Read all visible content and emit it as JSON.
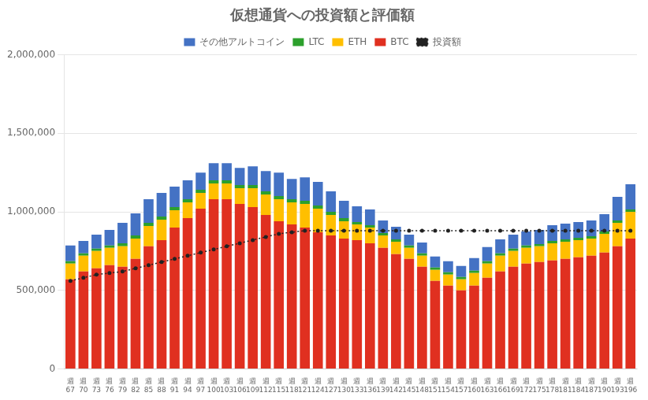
{
  "chart_data": {
    "type": "bar",
    "title": "仮想通貨への投資額と評価額",
    "categories": [
      "週\n67",
      "週\n70",
      "週\n73",
      "週\n76",
      "週\n79",
      "週\n82",
      "週\n85",
      "週\n88",
      "週\n91",
      "週\n94",
      "週\n97",
      "週\n100",
      "週\n103",
      "週\n106",
      "週\n109",
      "週\n112",
      "週\n115",
      "週\n118",
      "週\n121",
      "週\n124",
      "週\n127",
      "週\n130",
      "週\n133",
      "週\n136",
      "週\n139",
      "週\n142",
      "週\n145",
      "週\n148",
      "週\n151",
      "週\n154",
      "週\n157",
      "週\n160",
      "週\n163",
      "週\n166",
      "週\n169",
      "週\n172",
      "週\n175",
      "週\n178",
      "週\n181",
      "週\n184",
      "週\n187",
      "週\n190",
      "週\n193",
      "週\n196"
    ],
    "series": [
      {
        "name": "BTC",
        "color": "#E03020",
        "values": [
          570000,
          620000,
          640000,
          660000,
          650000,
          700000,
          780000,
          820000,
          900000,
          960000,
          1020000,
          1080000,
          1080000,
          1050000,
          1030000,
          980000,
          940000,
          920000,
          900000,
          870000,
          850000,
          830000,
          820000,
          800000,
          770000,
          730000,
          700000,
          650000,
          560000,
          530000,
          500000,
          530000,
          580000,
          620000,
          650000,
          670000,
          680000,
          690000,
          700000,
          710000,
          720000,
          740000,
          780000,
          830000
        ]
      },
      {
        "name": "ETH",
        "color": "#FFBF00",
        "values": [
          100000,
          100000,
          110000,
          110000,
          130000,
          130000,
          130000,
          130000,
          110000,
          100000,
          100000,
          100000,
          100000,
          100000,
          120000,
          130000,
          140000,
          140000,
          150000,
          150000,
          130000,
          110000,
          100000,
          100000,
          80000,
          80000,
          70000,
          70000,
          70000,
          70000,
          70000,
          80000,
          90000,
          100000,
          100000,
          100000,
          100000,
          110000,
          110000,
          110000,
          110000,
          120000,
          150000,
          170000
        ]
      },
      {
        "name": "LTC",
        "color": "#2CA02C",
        "values": [
          15000,
          15000,
          15000,
          15000,
          20000,
          20000,
          20000,
          20000,
          20000,
          20000,
          20000,
          20000,
          20000,
          20000,
          20000,
          20000,
          20000,
          20000,
          20000,
          20000,
          20000,
          20000,
          15000,
          15000,
          15000,
          15000,
          15000,
          15000,
          15000,
          15000,
          15000,
          15000,
          15000,
          15000,
          15000,
          15000,
          15000,
          15000,
          15000,
          15000,
          15000,
          15000,
          15000,
          15000
        ]
      },
      {
        "name": "その他アルトコイン",
        "color": "#4472C4",
        "values": [
          100000,
          80000,
          90000,
          100000,
          130000,
          140000,
          150000,
          150000,
          130000,
          120000,
          110000,
          110000,
          110000,
          110000,
          120000,
          130000,
          150000,
          130000,
          150000,
          150000,
          130000,
          110000,
          100000,
          100000,
          80000,
          80000,
          70000,
          70000,
          70000,
          70000,
          70000,
          80000,
          90000,
          90000,
          90000,
          90000,
          90000,
          100000,
          100000,
          100000,
          100000,
          110000,
          150000,
          160000
        ]
      },
      {
        "name": "投資額",
        "type": "line",
        "color": "#222222",
        "line_style": "dotted",
        "marker": "circle",
        "values": [
          560000,
          580000,
          600000,
          610000,
          620000,
          640000,
          660000,
          680000,
          700000,
          720000,
          740000,
          760000,
          780000,
          800000,
          820000,
          840000,
          860000,
          870000,
          880000,
          880000,
          880000,
          880000,
          880000,
          880000,
          880000,
          880000,
          880000,
          880000,
          880000,
          880000,
          880000,
          880000,
          880000,
          880000,
          880000,
          880000,
          880000,
          880000,
          880000,
          880000,
          880000,
          880000,
          880000,
          880000
        ]
      }
    ],
    "stacked": true,
    "ylim": [
      0,
      2000000
    ],
    "yticks": [
      0,
      {
        "value": 500000,
        "label": "500,000"
      },
      {
        "value": 1000000,
        "label": "1,000,000"
      },
      {
        "value": 1500000,
        "label": "1,500,000"
      },
      {
        "value": 2000000,
        "label": "2,000,000"
      }
    ],
    "grid": true,
    "legend": "top"
  }
}
